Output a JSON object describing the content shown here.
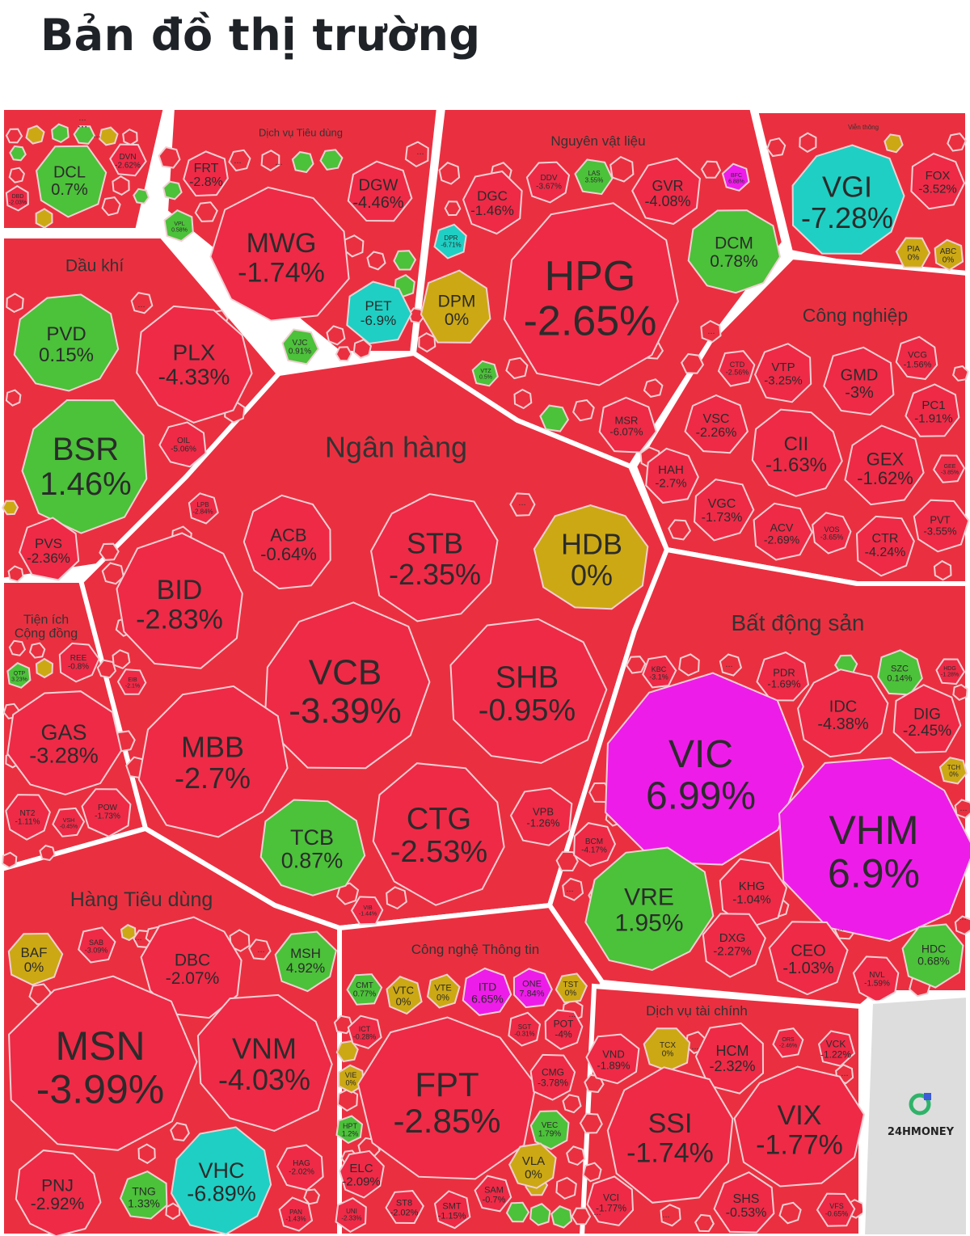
{
  "page_title": "Bản đồ thị trường",
  "brand": "24HMONEY",
  "colors": {
    "down": "#ee2a47",
    "up": "#4cc13a",
    "flat": "#cca814",
    "ceiling": "#ee1ce9",
    "floor": "#1fcfc3",
    "other": "#ea3040"
  },
  "chart_data": {
    "type": "treemap",
    "unit": "%",
    "sectors": [
      {
        "name": "...",
        "stocks": [
          {
            "t": "DCL",
            "v": 0.7
          },
          {
            "t": "DVN",
            "v": -2.62
          },
          {
            "t": "DBD",
            "v": -2.03
          }
        ]
      },
      {
        "name": "Dịch vụ Tiêu dùng",
        "stocks": [
          {
            "t": "FRT",
            "v": -2.8
          },
          {
            "t": "DGW",
            "v": -4.46
          },
          {
            "t": "MWG",
            "v": -1.74
          },
          {
            "t": "VPL",
            "v": 0.58
          },
          {
            "t": "PET",
            "v": -6.9
          },
          {
            "t": "VJC",
            "v": 0.91
          }
        ]
      },
      {
        "name": "Nguyên vật liệu",
        "stocks": [
          {
            "t": "DDV",
            "v": -3.67
          },
          {
            "t": "LAS",
            "v": 3.55
          },
          {
            "t": "DGC",
            "v": -1.46
          },
          {
            "t": "GVR",
            "v": -4.08
          },
          {
            "t": "BFC",
            "v": 6.88
          },
          {
            "t": "DPR",
            "v": -6.71
          },
          {
            "t": "HPG",
            "v": -2.65
          },
          {
            "t": "DCM",
            "v": 0.78
          },
          {
            "t": "DPM",
            "v": 0
          },
          {
            "t": "VTZ",
            "v": 0.5
          },
          {
            "t": "MSR",
            "v": -6.07
          }
        ]
      },
      {
        "name": "Viễn thông",
        "stocks": [
          {
            "t": "VGI",
            "v": -7.28
          },
          {
            "t": "FOX",
            "v": -3.52
          },
          {
            "t": "PIA",
            "v": 0
          },
          {
            "t": "ABC",
            "v": 0
          }
        ]
      },
      {
        "name": "Dầu khí",
        "stocks": [
          {
            "t": "PVD",
            "v": 0.15
          },
          {
            "t": "PLX",
            "v": -4.33
          },
          {
            "t": "BSR",
            "v": 1.46
          },
          {
            "t": "OIL",
            "v": -5.06
          },
          {
            "t": "PVS",
            "v": -2.36
          }
        ]
      },
      {
        "name": "Ngân hàng",
        "stocks": [
          {
            "t": "LPB",
            "v": -2.84
          },
          {
            "t": "ACB",
            "v": -0.64
          },
          {
            "t": "STB",
            "v": -2.35
          },
          {
            "t": "HDB",
            "v": 0
          },
          {
            "t": "BID",
            "v": -2.83
          },
          {
            "t": "VCB",
            "v": -3.39
          },
          {
            "t": "SHB",
            "v": -0.95
          },
          {
            "t": "EIB",
            "v": -2.1
          },
          {
            "t": "MBB",
            "v": -2.7
          },
          {
            "t": "TCB",
            "v": 0.87
          },
          {
            "t": "CTG",
            "v": -2.53
          },
          {
            "t": "VPB",
            "v": -1.26
          },
          {
            "t": "VIB",
            "v": -1.44
          }
        ]
      },
      {
        "name": "Công nghiệp",
        "stocks": [
          {
            "t": "CTD",
            "v": -2.56
          },
          {
            "t": "VTP",
            "v": -3.25
          },
          {
            "t": "GMD",
            "v": -3
          },
          {
            "t": "VCG",
            "v": -1.56
          },
          {
            "t": "PC1",
            "v": -1.91
          },
          {
            "t": "VSC",
            "v": -2.26
          },
          {
            "t": "CII",
            "v": -1.63
          },
          {
            "t": "GEX",
            "v": -1.62
          },
          {
            "t": "GEE",
            "v": -3.85
          },
          {
            "t": "HAH",
            "v": -2.7
          },
          {
            "t": "VGC",
            "v": -1.73
          },
          {
            "t": "ACV",
            "v": -2.69
          },
          {
            "t": "VOS",
            "v": -3.65
          },
          {
            "t": "CTR",
            "v": -4.24
          },
          {
            "t": "PVT",
            "v": -3.55
          }
        ]
      },
      {
        "name": "Tiện ích Cộng đồng",
        "stocks": [
          {
            "t": "QTP",
            "v": 3.23
          },
          {
            "t": "REE",
            "v": -0.8
          },
          {
            "t": "GAS",
            "v": -3.28
          },
          {
            "t": "NT2",
            "v": -1.11
          },
          {
            "t": "VSH",
            "v": -0.45
          },
          {
            "t": "POW",
            "v": -1.73
          }
        ]
      },
      {
        "name": "Bất động sản",
        "stocks": [
          {
            "t": "KBC",
            "v": -3.1
          },
          {
            "t": "PDR",
            "v": -1.69
          },
          {
            "t": "SZC",
            "v": 0.14
          },
          {
            "t": "HDG",
            "v": -1.28
          },
          {
            "t": "IDC",
            "v": -4.38
          },
          {
            "t": "DIG",
            "v": -2.45
          },
          {
            "t": "TCH",
            "v": 0
          },
          {
            "t": "VIC",
            "v": 6.99
          },
          {
            "t": "VHM",
            "v": 6.9
          },
          {
            "t": "BCM",
            "v": -4.17
          },
          {
            "t": "VRE",
            "v": 1.95
          },
          {
            "t": "KHG",
            "v": -1.04
          },
          {
            "t": "DXG",
            "v": -2.27
          },
          {
            "t": "CEO",
            "v": -1.03
          },
          {
            "t": "NVL",
            "v": -1.59
          },
          {
            "t": "HDC",
            "v": 0.68
          }
        ]
      },
      {
        "name": "Hàng Tiêu dùng",
        "stocks": [
          {
            "t": "BAF",
            "v": 0
          },
          {
            "t": "SAB",
            "v": -3.09
          },
          {
            "t": "DBC",
            "v": -2.07
          },
          {
            "t": "MSH",
            "v": 4.92
          },
          {
            "t": "MSN",
            "v": -3.99
          },
          {
            "t": "VNM",
            "v": -4.03
          },
          {
            "t": "VHC",
            "v": -6.89
          },
          {
            "t": "HAG",
            "v": -2.02
          },
          {
            "t": "PNJ",
            "v": -2.92
          },
          {
            "t": "TNG",
            "v": 1.33
          },
          {
            "t": "PAN",
            "v": -1.43
          }
        ]
      },
      {
        "name": "Công nghệ Thông tin",
        "stocks": [
          {
            "t": "CMT",
            "v": 0.77
          },
          {
            "t": "VTC",
            "v": 0
          },
          {
            "t": "VTE",
            "v": 0
          },
          {
            "t": "ITD",
            "v": 6.65
          },
          {
            "t": "ONE",
            "v": 7.84
          },
          {
            "t": "TST",
            "v": 0
          },
          {
            "t": "ICT",
            "v": -0.28
          },
          {
            "t": "SGT",
            "v": -0.31
          },
          {
            "t": "POT",
            "v": -4
          },
          {
            "t": "VIE",
            "v": 0
          },
          {
            "t": "FPT",
            "v": -2.85
          },
          {
            "t": "CMG",
            "v": -3.78
          },
          {
            "t": "HPT",
            "v": 1.2
          },
          {
            "t": "VEC",
            "v": 1.79
          },
          {
            "t": "ELC",
            "v": -2.09
          },
          {
            "t": "VLA",
            "v": 0
          },
          {
            "t": "SAM",
            "v": -0.7
          },
          {
            "t": "UNI",
            "v": -2.33
          },
          {
            "t": "ST8",
            "v": -2.02
          },
          {
            "t": "SMT",
            "v": -1.15
          }
        ]
      },
      {
        "name": "Dịch vụ tài chính",
        "stocks": [
          {
            "t": "TCX",
            "v": 0
          },
          {
            "t": "ORS",
            "v": -2.46
          },
          {
            "t": "VCK",
            "v": -1.22
          },
          {
            "t": "VND",
            "v": -1.89
          },
          {
            "t": "HCM",
            "v": -2.32
          },
          {
            "t": "SSI",
            "v": -1.74
          },
          {
            "t": "VIX",
            "v": -1.77
          },
          {
            "t": "VCI",
            "v": -1.77
          },
          {
            "t": "SHS",
            "v": -0.53
          },
          {
            "t": "VFS",
            "v": -0.65
          }
        ]
      }
    ]
  }
}
